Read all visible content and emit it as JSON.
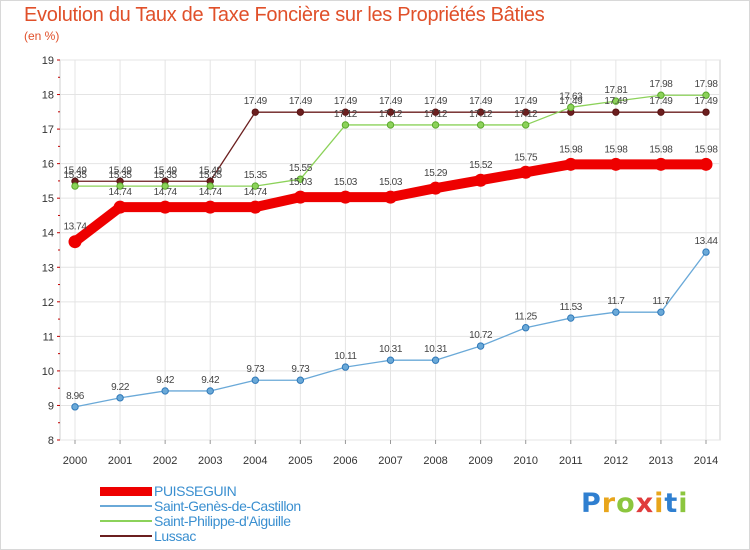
{
  "header": {
    "title": "Evolution du Taux de Taxe Foncière sur les Propriétés Bâties",
    "unit": "(en %)"
  },
  "logo": {
    "letters": [
      "P",
      "r",
      "o",
      "x",
      "i",
      "t",
      "i"
    ],
    "colors": [
      "#2f7fd0",
      "#e8a51b",
      "#8cc63e",
      "#e03c3c",
      "#e8a51b",
      "#2f7fd0",
      "#8cc63e"
    ]
  },
  "chart_data": {
    "type": "line",
    "title": "Evolution du Taux de Taxe Foncière sur les Propriétés Bâties",
    "ylabel": "(en %)",
    "xlabel": "",
    "ylim": [
      8,
      19
    ],
    "yticks": [
      "8",
      "9",
      "10",
      "11",
      "12",
      "13",
      "14",
      "15",
      "16",
      "17",
      "18",
      "19"
    ],
    "categories": [
      "2000",
      "2001",
      "2002",
      "2003",
      "2004",
      "2005",
      "2006",
      "2007",
      "2008",
      "2009",
      "2010",
      "2011",
      "2012",
      "2013",
      "2014"
    ],
    "grid": true,
    "legend_position": "bottom-left",
    "series": [
      {
        "name": "Lussac",
        "color": "#6b1f1f",
        "values": [
          15.49,
          15.49,
          15.49,
          15.49,
          17.49,
          17.49,
          17.49,
          17.49,
          17.49,
          17.49,
          17.49,
          17.49,
          17.49,
          17.49,
          17.49
        ],
        "labels": [
          "15.49",
          "15.49",
          "15.49",
          "15.49",
          "17.49",
          "17.49",
          "17.49",
          "17.49",
          "17.49",
          "17.49",
          "17.49",
          "17.49",
          "17.49",
          "17.49",
          "17.49"
        ]
      },
      {
        "name": "Saint-Philippe-d'Aiguille",
        "color": "#8cd25a",
        "values": [
          15.35,
          15.35,
          15.35,
          15.35,
          15.35,
          15.55,
          17.12,
          17.12,
          17.12,
          17.12,
          17.12,
          17.63,
          17.81,
          17.98,
          17.98
        ],
        "labels": [
          "15.35",
          "15.35",
          "15.35",
          "15.35",
          "15.35",
          "15.55",
          "17.12",
          "17.12",
          "17.12",
          "17.12",
          "17.12",
          "17.63",
          "17.81",
          "17.98",
          "17.98"
        ]
      },
      {
        "name": "Saint-Genès-de-Castillon",
        "color": "#6aa9d8",
        "values": [
          8.96,
          9.22,
          9.42,
          9.42,
          9.73,
          9.73,
          10.11,
          10.31,
          10.31,
          10.72,
          11.25,
          11.53,
          11.7,
          11.7,
          13.44
        ],
        "labels": [
          "8.96",
          "9.22",
          "9.42",
          "9.42",
          "9.73",
          "9.73",
          "10.11",
          "10.31",
          "10.31",
          "10.72",
          "11.25",
          "11.53",
          "11.7",
          "11.7",
          "13.44"
        ]
      },
      {
        "name": "PUISSEGUIN",
        "color": "#ee0000",
        "values": [
          13.74,
          14.74,
          14.74,
          14.74,
          14.74,
          15.03,
          15.03,
          15.03,
          15.29,
          15.52,
          15.75,
          15.98,
          15.98,
          15.98,
          15.98
        ],
        "labels": [
          "13.74",
          "14.74",
          "14.74",
          "14.74",
          "14.74",
          "15.03",
          "15.03",
          "15.03",
          "15.29",
          "15.52",
          "15.75",
          "15.98",
          "15.98",
          "15.98",
          "15.98"
        ]
      }
    ]
  }
}
